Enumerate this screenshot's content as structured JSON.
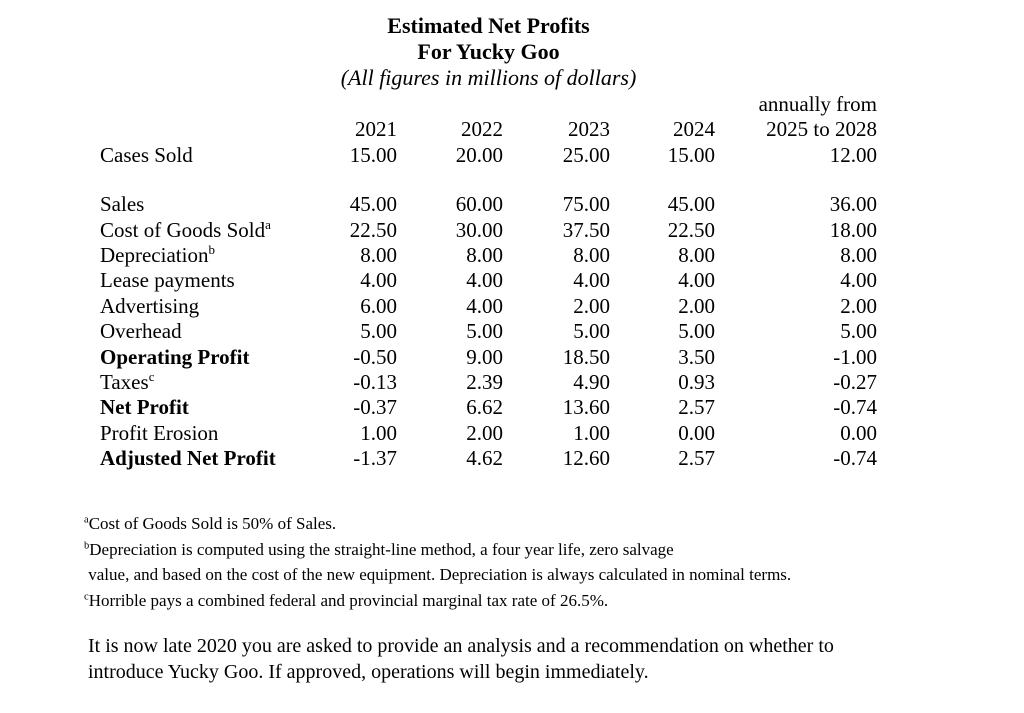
{
  "title": {
    "line1": "Estimated Net Profits",
    "line2": "For Yucky Goo",
    "line3": "(All figures in millions of dollars)"
  },
  "table": {
    "header": {
      "annual_note": "annually from",
      "columns": [
        "2021",
        "2022",
        "2023",
        "2024",
        "2025 to 2028"
      ]
    },
    "rows": [
      {
        "label": "Cases Sold",
        "marker": "",
        "bold": false,
        "values": [
          "15.00",
          "20.00",
          "25.00",
          "15.00",
          "12.00"
        ],
        "spacer_after": true
      },
      {
        "label": "Sales",
        "marker": "",
        "bold": false,
        "values": [
          "45.00",
          "60.00",
          "75.00",
          "45.00",
          "36.00"
        ],
        "spacer_after": false
      },
      {
        "label": "Cost of Goods Sold",
        "marker": "a",
        "bold": false,
        "values": [
          "22.50",
          "30.00",
          "37.50",
          "22.50",
          "18.00"
        ],
        "spacer_after": false
      },
      {
        "label": "Depreciation",
        "marker": "b",
        "bold": false,
        "values": [
          "8.00",
          "8.00",
          "8.00",
          "8.00",
          "8.00"
        ],
        "spacer_after": false
      },
      {
        "label": "Lease payments",
        "marker": "",
        "bold": false,
        "values": [
          "4.00",
          "4.00",
          "4.00",
          "4.00",
          "4.00"
        ],
        "spacer_after": false
      },
      {
        "label": "Advertising",
        "marker": "",
        "bold": false,
        "values": [
          "6.00",
          "4.00",
          "2.00",
          "2.00",
          "2.00"
        ],
        "spacer_after": false
      },
      {
        "label": "Overhead",
        "marker": "",
        "bold": false,
        "values": [
          "5.00",
          "5.00",
          "5.00",
          "5.00",
          "5.00"
        ],
        "spacer_after": false
      },
      {
        "label": "Operating Profit",
        "marker": "",
        "bold": true,
        "values": [
          "-0.50",
          "9.00",
          "18.50",
          "3.50",
          "-1.00"
        ],
        "spacer_after": false
      },
      {
        "label": "Taxes",
        "marker": "c",
        "bold": false,
        "values": [
          "-0.13",
          "2.39",
          "4.90",
          "0.93",
          "-0.27"
        ],
        "spacer_after": false
      },
      {
        "label": "Net Profit",
        "marker": "",
        "bold": true,
        "values": [
          "-0.37",
          "6.62",
          "13.60",
          "2.57",
          "-0.74"
        ],
        "spacer_after": false
      },
      {
        "label": "Profit Erosion",
        "marker": "",
        "bold": false,
        "values": [
          "1.00",
          "2.00",
          "1.00",
          "0.00",
          "0.00"
        ],
        "spacer_after": false
      },
      {
        "label": "Adjusted Net Profit",
        "marker": "",
        "bold": true,
        "values": [
          "-1.37",
          "4.62",
          "12.60",
          "2.57",
          "-0.74"
        ],
        "spacer_after": false
      }
    ]
  },
  "footnotes": [
    {
      "marker": "a",
      "text": "Cost of Goods Sold is 50% of Sales."
    },
    {
      "marker": "b",
      "text": "Depreciation is computed using the straight-line method, a four year life, zero salvage"
    },
    {
      "marker": "",
      "text": " value, and based on the cost of the new equipment. Depreciation is always calculated in nominal terms."
    },
    {
      "marker": "c",
      "text": "Horrible pays a combined federal and provincial marginal tax rate of 26.5%."
    }
  ],
  "paragraph": {
    "lines": [
      "It is now late 2020 you are asked to provide an analysis and a recommendation on whether to",
      "introduce Yucky Goo. If approved, operations will begin immediately."
    ]
  }
}
